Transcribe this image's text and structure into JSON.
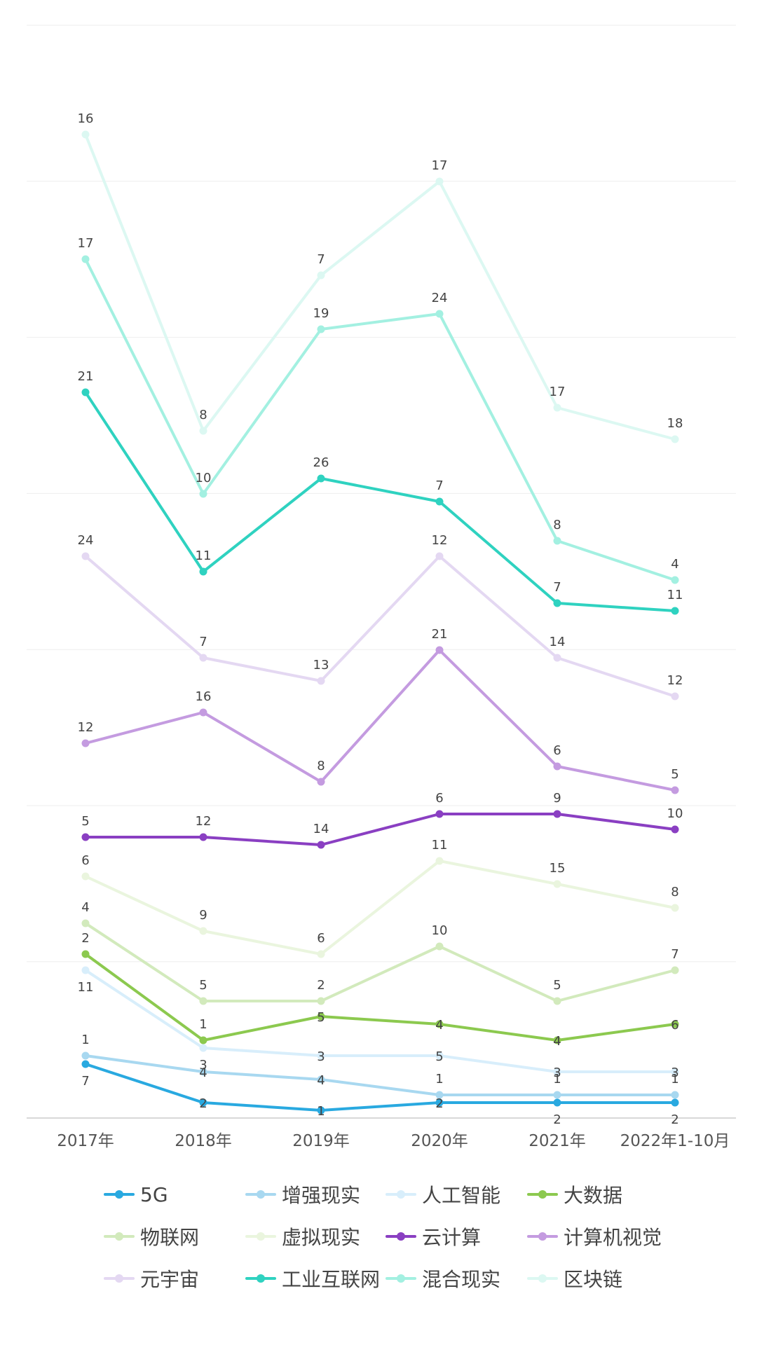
{
  "chart_data": {
    "type": "line",
    "categories": [
      "2017年",
      "2018年",
      "2019年",
      "2020年",
      "2021年",
      "2022年1-10月"
    ],
    "grid": true,
    "legend_position": "bottom",
    "series": [
      {
        "name": "5G",
        "color": "#29a9e0",
        "values": [
          7,
          2,
          1,
          2,
          2,
          2
        ]
      },
      {
        "name": "增强现实",
        "color": "#a8d8f0",
        "values": [
          1,
          4,
          4,
          1,
          1,
          1
        ]
      },
      {
        "name": "人工智能",
        "color": "#d8eefb",
        "values": [
          11,
          3,
          3,
          5,
          3,
          3
        ]
      },
      {
        "name": "大数据",
        "color": "#8cc94f",
        "values": [
          2,
          1,
          5,
          4,
          4,
          6
        ]
      },
      {
        "name": "物联网",
        "color": "#d2eabc",
        "values": [
          4,
          5,
          2,
          10,
          5,
          7
        ]
      },
      {
        "name": "虚拟现实",
        "color": "#eaf5de",
        "values": [
          6,
          9,
          6,
          11,
          15,
          8
        ]
      },
      {
        "name": "云计算",
        "color": "#8a3fc2",
        "values": [
          5,
          12,
          14,
          6,
          9,
          10
        ]
      },
      {
        "name": "计算机视觉",
        "color": "#c49be0",
        "values": [
          12,
          16,
          8,
          21,
          6,
          5
        ]
      },
      {
        "name": "元宇宙",
        "color": "#e4d8f2",
        "values": [
          24,
          7,
          13,
          12,
          14,
          12
        ]
      },
      {
        "name": "工业互联网",
        "color": "#2fd2c0",
        "values": [
          21,
          11,
          26,
          7,
          7,
          11
        ]
      },
      {
        "name": "混合现实",
        "color": "#a3f0e1",
        "values": [
          17,
          10,
          19,
          24,
          8,
          4
        ]
      },
      {
        "name": "区块链",
        "color": "#dcf8f2",
        "values": [
          16,
          8,
          7,
          17,
          17,
          18
        ]
      }
    ]
  }
}
